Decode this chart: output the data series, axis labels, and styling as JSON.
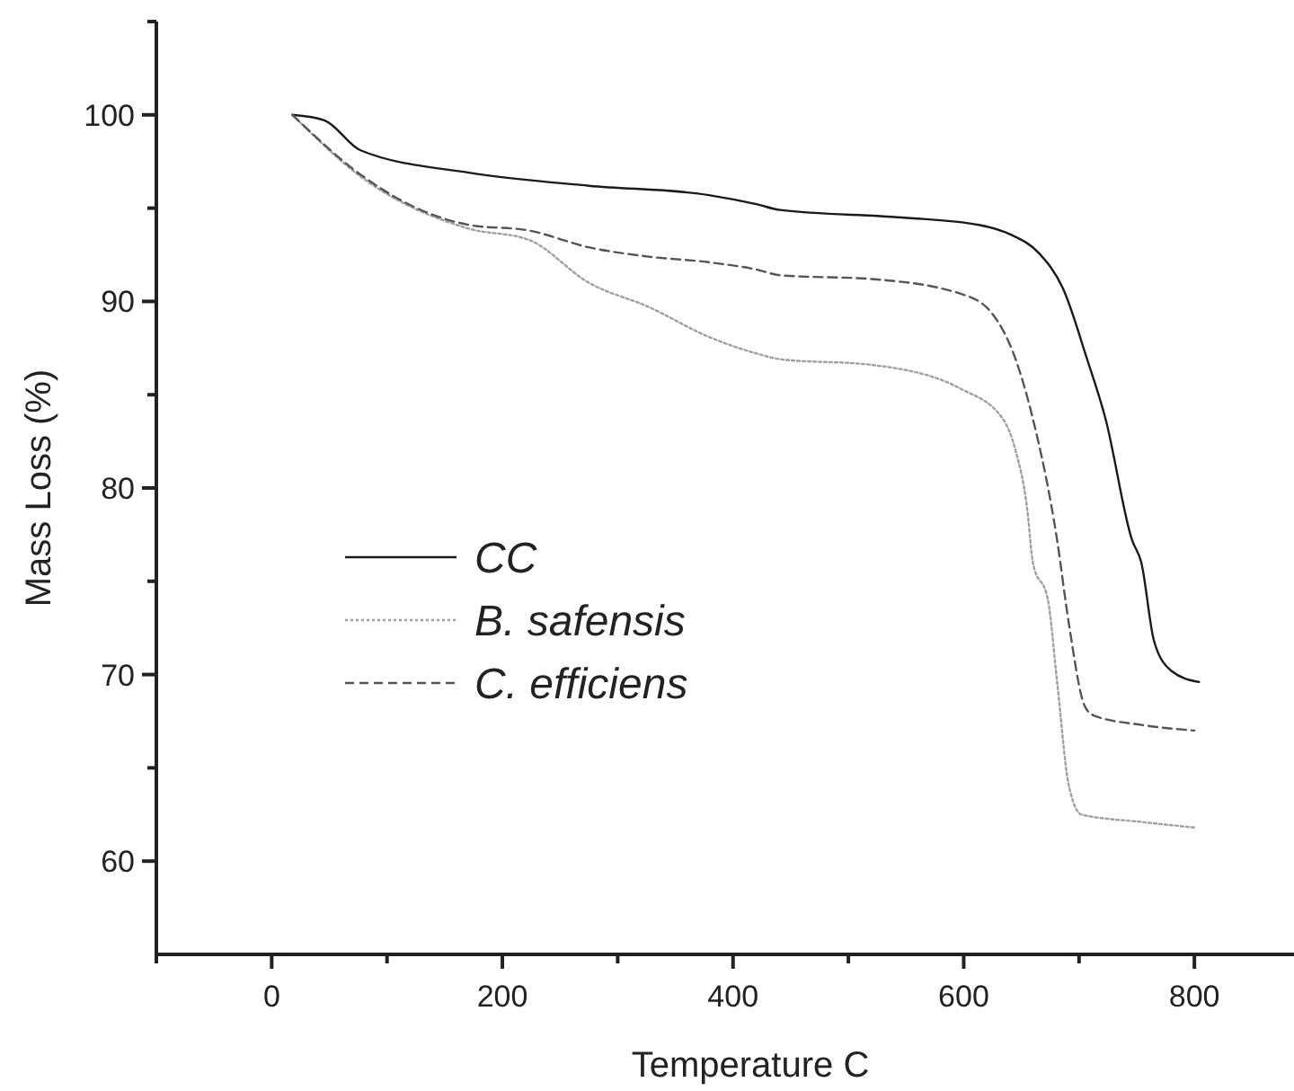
{
  "chart_data": {
    "type": "line",
    "xlabel": "Temperature C",
    "ylabel": "Mass Loss (%)",
    "xlim": [
      -100,
      930
    ],
    "ylim": [
      55,
      105
    ],
    "xticks": [
      {
        "value": -100,
        "label": null
      },
      0,
      {
        "value": 100,
        "label": null
      },
      200,
      {
        "value": 300,
        "label": null
      },
      400,
      {
        "value": 500,
        "label": null
      },
      600,
      {
        "value": 700,
        "label": null
      },
      800,
      {
        "value": 900,
        "label": null
      }
    ],
    "yticks": [
      60,
      {
        "value": 65,
        "label": null
      },
      70,
      {
        "value": 75,
        "label": null
      },
      80,
      {
        "value": 85,
        "label": null
      },
      90,
      {
        "value": 95,
        "label": null
      },
      100,
      {
        "value": 105,
        "label": null
      }
    ],
    "grid": false,
    "legend": "left",
    "marker": "none",
    "series": [
      {
        "name": "CC",
        "color": "#1a1a1a",
        "line_style": "solid",
        "x": [
          18,
          46,
          77,
          171,
          275,
          379,
          421,
          441,
          546,
          613,
          640,
          665,
          686,
          707,
          723,
          746,
          754,
          765,
          780,
          804
        ],
        "values": [
          100,
          99.7,
          98.1,
          96.9,
          96.2,
          95.7,
          95.2,
          94.9,
          94.5,
          94.1,
          93.6,
          92.6,
          90.7,
          86.9,
          83.7,
          77.2,
          76.0,
          71.8,
          70.2,
          69.6
        ]
      },
      {
        "name": "B. safensis",
        "color": "#a0a0a0",
        "line_style": "dotted",
        "x": [
          18,
          77,
          171,
          223,
          275,
          327,
          379,
          421,
          441,
          520,
          598,
          634,
          645,
          655,
          660,
          673,
          681,
          691,
          702,
          754,
          800
        ],
        "values": [
          100,
          96.7,
          93.9,
          93.3,
          91.0,
          89.7,
          88.1,
          87.2,
          86.9,
          86.6,
          85.3,
          83.7,
          82.0,
          78.9,
          76.0,
          74.0,
          69.6,
          64.1,
          62.5,
          62.1,
          61.8
        ]
      },
      {
        "name": "C. efficiens",
        "color": "#555555",
        "line_style": "dashed",
        "x": [
          18,
          77,
          119,
          171,
          223,
          275,
          327,
          379,
          421,
          441,
          520,
          598,
          624,
          645,
          660,
          681,
          691,
          705,
          713,
          754,
          800
        ],
        "values": [
          100,
          96.8,
          95.2,
          94.1,
          93.8,
          92.9,
          92.4,
          92.1,
          91.7,
          91.4,
          91.2,
          90.4,
          89.4,
          86.9,
          83.7,
          77.2,
          72.8,
          68.3,
          67.8,
          67.3,
          67.0
        ]
      }
    ]
  }
}
